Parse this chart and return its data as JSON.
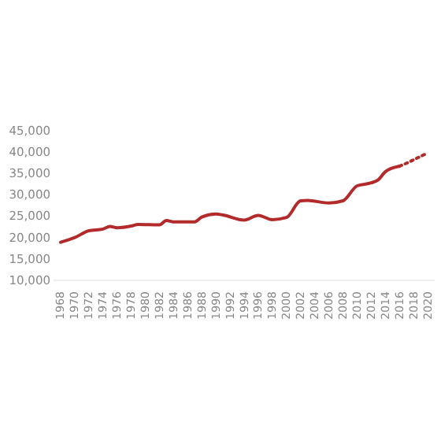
{
  "chart_data": {
    "type": "line",
    "x": [
      1968,
      1970,
      1972,
      1974,
      1975,
      1976,
      1978,
      1979,
      1982,
      1983,
      1984,
      1987,
      1988,
      1990,
      1991,
      1994,
      1996,
      1998,
      2000,
      2002,
      2003,
      2006,
      2008,
      2010,
      2012,
      2013,
      2014,
      2016
    ],
    "series": [
      {
        "color": "#b22a2a",
        "line_style": "solid",
        "values": [
          18900,
          20000,
          21600,
          22000,
          22600,
          22300,
          22700,
          23100,
          23000,
          24000,
          23700,
          23700,
          24800,
          25500,
          25300,
          24100,
          25200,
          24200,
          24700,
          28600,
          28700,
          28100,
          28600,
          32100,
          32800,
          33500,
          35400,
          36700
        ]
      },
      {
        "color": "#b22a2a",
        "line_style": "dotted",
        "x": [
          2016,
          2017,
          2018,
          2019,
          2020
        ],
        "values": [
          36700,
          37400,
          38200,
          39000,
          39800
        ]
      }
    ],
    "xlim": [
      1967,
      2021
    ],
    "xticks": [
      1968,
      1970,
      1972,
      1974,
      1976,
      1978,
      1980,
      1982,
      1984,
      1986,
      1988,
      1990,
      1992,
      1994,
      1996,
      1998,
      2000,
      2002,
      2004,
      2006,
      2008,
      2010,
      2012,
      2014,
      2016,
      2018,
      2020
    ],
    "ylim": [
      10000,
      45000
    ],
    "yticks": [
      {
        "value": 10000,
        "label": "10,000"
      },
      {
        "value": 15000,
        "label": "15,000"
      },
      {
        "value": 20000,
        "label": "20,000"
      },
      {
        "value": 25000,
        "label": "25,000"
      },
      {
        "value": 30000,
        "label": "30,000"
      },
      {
        "value": 35000,
        "label": "35,000"
      },
      {
        "value": 40000,
        "label": "40,000"
      },
      {
        "value": 45000,
        "label": "45,000"
      }
    ],
    "grid": false,
    "marker": "none"
  }
}
